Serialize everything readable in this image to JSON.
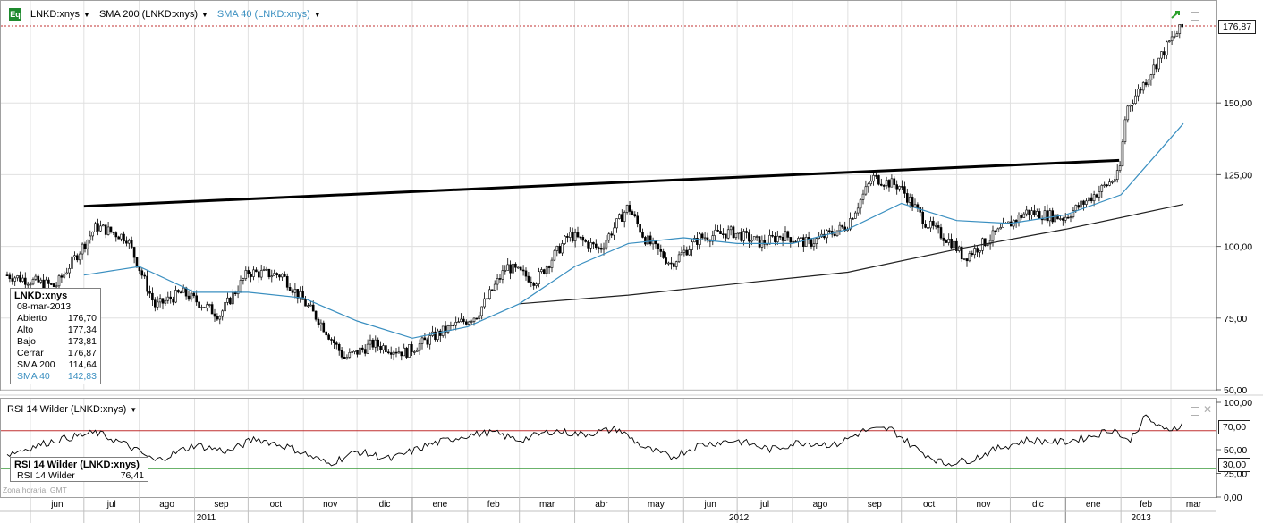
{
  "legend": {
    "icon_label": "Eq",
    "symbol": "LNKD:xnys",
    "sma200": "SMA 200 (LNKD:xnys)",
    "sma40": "SMA 40 (LNKD:xnys)",
    "rsi": "RSI 14 Wilder (LNKD:xnys)"
  },
  "info_box": {
    "title": "LNKD:xnys",
    "date": "08-mar-2013",
    "rows": [
      {
        "label": "Abierto",
        "value": "176,70"
      },
      {
        "label": "Alto",
        "value": "177,34"
      },
      {
        "label": "Bajo",
        "value": "173,81"
      },
      {
        "label": "Cerrar",
        "value": "176,87"
      },
      {
        "label": "SMA 200",
        "value": "114,64"
      },
      {
        "label": "SMA 40",
        "value": "142,83"
      }
    ]
  },
  "rsi_box": {
    "title": "RSI 14 Wilder (LNKD:xnys)",
    "label": "RSI 14 Wilder",
    "value": "76,41"
  },
  "timezone": "Zona horaria: GMT",
  "last_price_tag": "176,87",
  "rsi_tags": {
    "upper": "70,00",
    "lower": "30,00"
  },
  "colors": {
    "sma40": "#3a8fc0",
    "sma200": "#202020",
    "rsi_upper": "#c03030",
    "rsi_lower": "#3a9a3a",
    "trendline": "#000000",
    "last_price_line": "#c03030"
  },
  "chart_data": [
    {
      "type": "candlestick",
      "title": "LNKD:xnys",
      "price_axis": {
        "ylim": [
          50,
          180
        ],
        "ticks": [
          "50,00",
          "75,00",
          "100,00",
          "125,00",
          "150,00",
          "176,87"
        ]
      },
      "months": [
        "jun",
        "jul",
        "ago",
        "sep",
        "oct",
        "nov",
        "dic",
        "ene",
        "feb",
        "mar",
        "abr",
        "may",
        "jun",
        "jul",
        "ago",
        "sep",
        "oct",
        "nov",
        "dic",
        "ene",
        "feb",
        "mar"
      ],
      "years": [
        "2011",
        "2012",
        "2013"
      ],
      "series": [
        {
          "name": "LNKD:xnys",
          "x": [
            "2011-05-19",
            "2011-06-15",
            "2011-07-08",
            "2011-07-25",
            "2011-08-10",
            "2011-08-25",
            "2011-09-15",
            "2011-10-01",
            "2011-10-20",
            "2011-11-10",
            "2011-11-24",
            "2011-12-10",
            "2011-12-28",
            "2012-01-20",
            "2012-02-06",
            "2012-02-23",
            "2012-03-10",
            "2012-03-29",
            "2012-04-15",
            "2012-05-01",
            "2012-05-10",
            "2012-05-25",
            "2012-06-10",
            "2012-06-28",
            "2012-07-15",
            "2012-07-26",
            "2012-08-10",
            "2012-08-31",
            "2012-09-15",
            "2012-09-30",
            "2012-10-15",
            "2012-10-30",
            "2012-11-05",
            "2012-11-20",
            "2012-12-10",
            "2012-12-31",
            "2013-01-15",
            "2013-01-31",
            "2013-02-04",
            "2013-02-15",
            "2013-03-01",
            "2013-03-08"
          ],
          "close": [
            90,
            86,
            107,
            103,
            79,
            84,
            76,
            91,
            90,
            74,
            61,
            66,
            63,
            71,
            76,
            93,
            88,
            104,
            99,
            114,
            103,
            94,
            103,
            105,
            101,
            104,
            101,
            107,
            124,
            121,
            108,
            101,
            96,
            103,
            112,
            110,
            117,
            125,
            148,
            158,
            172,
            176.87
          ]
        },
        {
          "name": "SMA 200 (LNKD:xnys)",
          "x": [
            "2012-03-01",
            "2012-05-01",
            "2012-07-01",
            "2012-09-01",
            "2012-11-01",
            "2013-01-01",
            "2013-03-08"
          ],
          "values": [
            80,
            83,
            87,
            91,
            99,
            106,
            114.64
          ]
        },
        {
          "name": "SMA 40 (LNKD:xnys)",
          "x": [
            "2011-07-01",
            "2011-08-01",
            "2011-09-01",
            "2011-10-01",
            "2011-11-01",
            "2011-12-01",
            "2012-01-01",
            "2012-02-01",
            "2012-03-01",
            "2012-04-01",
            "2012-05-01",
            "2012-06-01",
            "2012-07-01",
            "2012-08-01",
            "2012-09-01",
            "2012-10-01",
            "2012-11-01",
            "2012-12-01",
            "2013-01-01",
            "2013-02-01",
            "2013-03-08"
          ],
          "values": [
            90,
            93,
            84,
            84,
            82,
            74,
            68,
            72,
            80,
            93,
            101,
            103,
            101,
            101,
            106,
            115,
            109,
            108,
            111,
            118,
            142.83
          ]
        }
      ],
      "trendline": {
        "x": [
          "2011-07-01",
          "2013-01-31"
        ],
        "y": [
          114,
          130
        ]
      }
    },
    {
      "type": "line",
      "title": "RSI 14 Wilder (LNKD:xnys)",
      "ylim": [
        0,
        100
      ],
      "ticks": [
        "0,00",
        "25,00",
        "50,00",
        "75,00",
        "100,00"
      ],
      "reference_lines": [
        70,
        30
      ],
      "series": [
        {
          "name": "RSI 14 Wilder",
          "x": [
            "2011-05-19",
            "2011-06-15",
            "2011-07-08",
            "2011-07-25",
            "2011-08-10",
            "2011-09-01",
            "2011-09-20",
            "2011-10-05",
            "2011-10-25",
            "2011-11-15",
            "2011-12-01",
            "2011-12-20",
            "2012-01-10",
            "2012-01-31",
            "2012-02-15",
            "2012-03-01",
            "2012-03-20",
            "2012-04-05",
            "2012-04-25",
            "2012-05-10",
            "2012-05-25",
            "2012-06-10",
            "2012-06-30",
            "2012-07-20",
            "2012-08-05",
            "2012-08-25",
            "2012-09-10",
            "2012-09-25",
            "2012-10-10",
            "2012-10-25",
            "2012-11-10",
            "2012-11-25",
            "2012-12-10",
            "2012-12-31",
            "2013-01-15",
            "2013-01-28",
            "2013-02-05",
            "2013-02-15",
            "2013-02-25",
            "2013-03-08"
          ],
          "values": [
            45,
            60,
            68,
            55,
            38,
            55,
            48,
            62,
            52,
            35,
            48,
            40,
            55,
            65,
            68,
            60,
            70,
            66,
            72,
            52,
            42,
            55,
            60,
            50,
            58,
            55,
            70,
            72,
            50,
            35,
            40,
            52,
            60,
            58,
            64,
            72,
            58,
            85,
            70,
            76.41
          ]
        }
      ]
    }
  ]
}
